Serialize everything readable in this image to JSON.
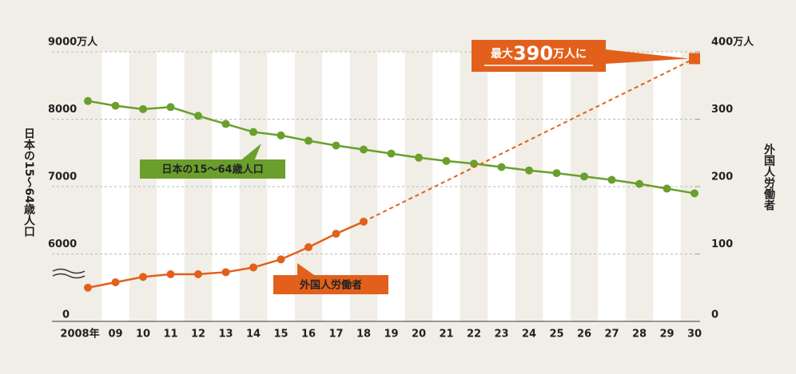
{
  "chart_data": {
    "type": "line",
    "categories": [
      "2008年",
      "09",
      "10",
      "11",
      "12",
      "13",
      "14",
      "15",
      "16",
      "17",
      "18",
      "19",
      "20",
      "21",
      "22",
      "23",
      "24",
      "25",
      "26",
      "27",
      "28",
      "29",
      "30"
    ],
    "series": [
      {
        "name": "日本の15～64歳人口",
        "color": "#6a9f2c",
        "axis": "y",
        "values": [
          8270,
          8200,
          8150,
          8180,
          8050,
          7930,
          7810,
          7760,
          7680,
          7610,
          7550,
          7490,
          7430,
          7380,
          7340,
          7290,
          7240,
          7200,
          7150,
          7100,
          7040,
          6970,
          6900
        ]
      },
      {
        "name": "外国人労働者",
        "color": "#e2601b",
        "axis": "y2",
        "values": [
          50,
          58,
          66,
          70,
          70,
          73,
          80,
          92,
          110,
          130,
          148,
          null,
          null,
          null,
          null,
          null,
          null,
          null,
          null,
          null,
          null,
          null,
          null
        ]
      },
      {
        "color": "#e2601b",
        "axis": "y2",
        "dashed": true,
        "x": [
          "18",
          "30"
        ],
        "values": [
          148,
          390
        ]
      }
    ],
    "ylim": [
      5000,
      9000
    ],
    "yticks": [
      6000,
      7000,
      8000,
      {
        "value": 9000,
        "label": "9000万人"
      }
    ],
    "ybreak_label": "0",
    "y2lim": [
      0,
      400
    ],
    "y2ticks": [
      0,
      100,
      200,
      300,
      {
        "value": 400,
        "label": "400万人"
      }
    ],
    "ylabel": "日本の15～64歳人口",
    "y2label": "外国人労働者",
    "annotation": {
      "parts": [
        "最大",
        "390",
        "万人に"
      ]
    },
    "grid": true
  }
}
